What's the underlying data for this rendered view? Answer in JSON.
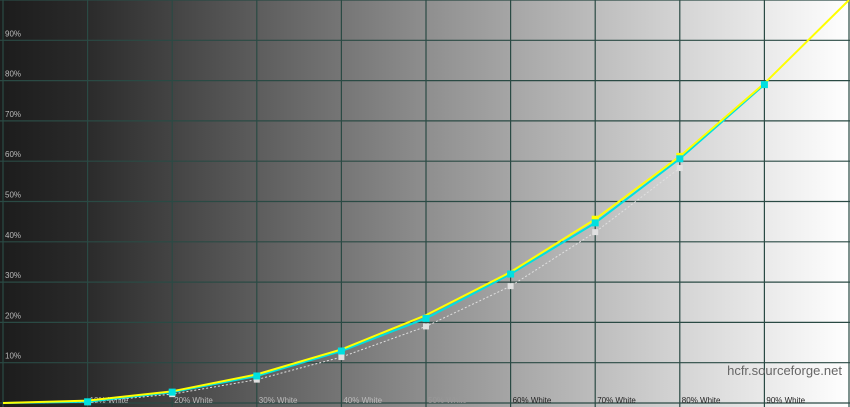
{
  "chart_data": {
    "type": "line",
    "title": "",
    "xlabel": "",
    "ylabel": "",
    "xlim": [
      0,
      100
    ],
    "ylim": [
      0,
      100
    ],
    "grid": true,
    "x_tick_labels": [
      "10% White",
      "20% White",
      "30% White",
      "40% White",
      "50% White",
      "60% White",
      "70% White",
      "80% White",
      "90% White"
    ],
    "y_tick_labels": [
      "10%",
      "20%",
      "30%",
      "40%",
      "50%",
      "60%",
      "70%",
      "80%",
      "90%"
    ],
    "x": [
      0,
      10,
      20,
      30,
      40,
      50,
      60,
      70,
      80,
      90,
      100
    ],
    "series": [
      {
        "role": "reference",
        "color": "#ffff00",
        "values": [
          0,
          0.6,
          2.9,
          7.1,
          13.3,
          21.8,
          32.5,
          45.6,
          61.2,
          79.3,
          100
        ]
      },
      {
        "role": "measured",
        "color": "#00e0e0",
        "values": [
          0,
          0.3,
          2.7,
          6.7,
          12.9,
          21,
          32,
          44.7,
          60.6,
          79,
          null
        ]
      },
      {
        "role": "secondary",
        "color": "#e0e0e0",
        "dashed": true,
        "values": [
          0,
          0.2,
          2.2,
          5.8,
          11.4,
          19,
          29,
          42.4,
          58.3,
          null,
          null
        ]
      }
    ],
    "watermark": "hcfr.sourceforge.net",
    "colors": {
      "grid": "#2a4a44",
      "background_left": "#1e1e1e",
      "background_right": "#ffffff"
    }
  }
}
